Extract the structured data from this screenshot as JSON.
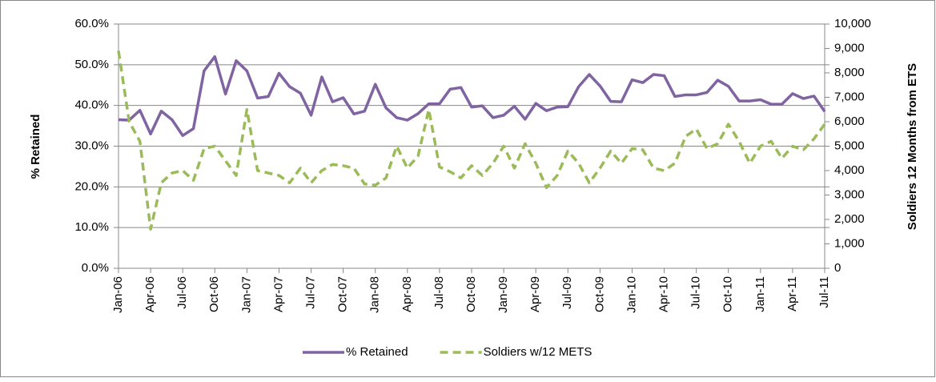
{
  "chart_data": {
    "type": "line",
    "y_label": "% Retained",
    "y2_label": "Soldiers 12 Months from ETS",
    "categories": [
      "Jan-06",
      null,
      null,
      "Apr-06",
      null,
      null,
      "Jul-06",
      null,
      null,
      "Oct-06",
      null,
      null,
      "Jan-07",
      null,
      null,
      "Apr-07",
      null,
      null,
      "Jul-07",
      null,
      null,
      "Oct-07",
      null,
      null,
      "Jan-08",
      null,
      null,
      "Apr-08",
      null,
      null,
      "Jul-08",
      null,
      null,
      "Oct-08",
      null,
      null,
      "Jan-09",
      null,
      null,
      "Apr-09",
      null,
      null,
      "Jul-09",
      null,
      null,
      "Oct-09",
      null,
      null,
      "Jan-10",
      null,
      null,
      "Apr-10",
      null,
      null,
      "Jul-10",
      null,
      null,
      "Oct-10",
      null,
      null,
      "Jan-11",
      null,
      null,
      "Apr-11",
      null,
      null,
      "Jul-11"
    ],
    "series": [
      {
        "name": "% Retained",
        "color": "#8064a2",
        "dash": false,
        "values": [
          36.5,
          36.4,
          38.8,
          33.0,
          38.6,
          36.5,
          32.6,
          34.3,
          48.5,
          52.0,
          42.8,
          51.0,
          48.5,
          41.8,
          42.2,
          47.9,
          44.6,
          43.0,
          37.6,
          47.0,
          40.9,
          41.9,
          37.9,
          38.6,
          45.2,
          39.4,
          37.0,
          36.4,
          38.0,
          40.4,
          40.4,
          44.0,
          44.4,
          39.6,
          39.9,
          37.0,
          37.6,
          39.8,
          36.6,
          40.5,
          38.7,
          39.6,
          39.7,
          44.6,
          47.6,
          44.8,
          41.0,
          40.9,
          46.3,
          45.6,
          47.6,
          47.3,
          42.2,
          42.6,
          42.6,
          43.2,
          46.2,
          44.7,
          41.1,
          41.1,
          41.4,
          40.3,
          40.3,
          42.9,
          41.7,
          42.3,
          38.5
        ]
      },
      {
        "name": "Soldiers w/12 METS",
        "color": "#9bbb59",
        "dash": true,
        "axis": "y2",
        "values": [
          8900,
          6000,
          5200,
          1600,
          3500,
          3900,
          4000,
          3600,
          4900,
          5000,
          4400,
          3800,
          6500,
          4000,
          3900,
          3800,
          3500,
          4100,
          3500,
          4000,
          4250,
          4200,
          4100,
          3450,
          3400,
          3700,
          5000,
          4100,
          4600,
          6500,
          4150,
          3950,
          3700,
          4200,
          3800,
          4300,
          5000,
          4100,
          5100,
          4300,
          3300,
          3800,
          4800,
          4300,
          3500,
          4100,
          4800,
          4300,
          4900,
          4850,
          4100,
          4000,
          4300,
          5400,
          5700,
          4900,
          5100,
          5900,
          5200,
          4300,
          5000,
          5200,
          4500,
          5000,
          4850,
          5300,
          5900
        ]
      }
    ],
    "ylim": [
      0,
      60
    ],
    "yticks": [
      {
        "value": 0,
        "label": "0.0%"
      },
      {
        "value": 10,
        "label": "10.0%"
      },
      {
        "value": 20,
        "label": "20.0%"
      },
      {
        "value": 30,
        "label": "30.0%"
      },
      {
        "value": 40,
        "label": "40.0%"
      },
      {
        "value": 50,
        "label": "50.0%"
      },
      {
        "value": 60,
        "label": "60.0%"
      }
    ],
    "y2lim": [
      0,
      10000
    ],
    "y2ticks": [
      0,
      {
        "value": 1000,
        "label": "1,000"
      },
      {
        "value": 2000,
        "label": "2,000"
      },
      {
        "value": 3000,
        "label": "3,000"
      },
      {
        "value": 4000,
        "label": "4,000"
      },
      {
        "value": 5000,
        "label": "5,000"
      },
      {
        "value": 6000,
        "label": "6,000"
      },
      {
        "value": 7000,
        "label": "7,000"
      },
      {
        "value": 8000,
        "label": "8,000"
      },
      {
        "value": 9000,
        "label": "9,000"
      },
      {
        "value": 10000,
        "label": "10,000"
      }
    ],
    "grid": true,
    "legend": "bottom"
  }
}
